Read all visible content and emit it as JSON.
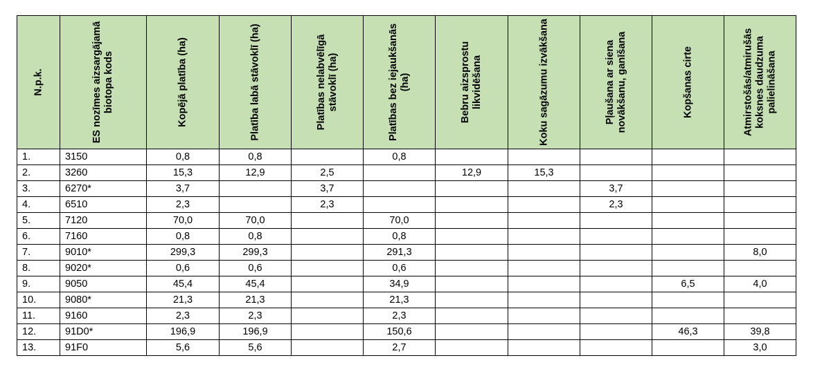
{
  "table": {
    "headers": [
      "N.p.k.",
      "ES nozīmes aizsargājamā biotopa kods",
      "Kopējā platība (ha)",
      "Platība labā stāvoklī (ha)",
      "Platības nelabvēlīgā stāvoklī (ha)",
      "Platības bez iejaukšanās (ha)",
      "Bebru aizsprostu likvidēšana",
      "Koku sagāzumu izvākšana",
      "Pļaušana ar siena novākšanu, ganīšana",
      "Kopšanas cirte",
      "Atmirstošās/atmirušās koksnes daudzuma palielināšana"
    ],
    "rows": [
      [
        "1.",
        "3150",
        "0,8",
        "0,8",
        "",
        "0,8",
        "",
        "",
        "",
        "",
        ""
      ],
      [
        "2.",
        "3260",
        "15,3",
        "12,9",
        "2,5",
        "",
        "12,9",
        "15,3",
        "",
        "",
        ""
      ],
      [
        "3.",
        "6270*",
        "3,7",
        "",
        "3,7",
        "",
        "",
        "",
        "3,7",
        "",
        ""
      ],
      [
        "4.",
        "6510",
        "2,3",
        "",
        "2,3",
        "",
        "",
        "",
        "2,3",
        "",
        ""
      ],
      [
        "5.",
        "7120",
        "70,0",
        "70,0",
        "",
        "70,0",
        "",
        "",
        "",
        "",
        ""
      ],
      [
        "6.",
        "7160",
        "0,8",
        "0,8",
        "",
        "0,8",
        "",
        "",
        "",
        "",
        ""
      ],
      [
        "7.",
        "9010*",
        "299,3",
        "299,3",
        "",
        "291,3",
        "",
        "",
        "",
        "",
        "8,0"
      ],
      [
        "8.",
        "9020*",
        "0,6",
        "0,6",
        "",
        "0,6",
        "",
        "",
        "",
        "",
        ""
      ],
      [
        "9.",
        "9050",
        "45,4",
        "45,4",
        "",
        "34,9",
        "",
        "",
        "",
        "6,5",
        "4,0"
      ],
      [
        "10.",
        "9080*",
        "21,3",
        "21,3",
        "",
        "21,3",
        "",
        "",
        "",
        "",
        ""
      ],
      [
        "11.",
        "9160",
        "2,3",
        "2,3",
        "",
        "2,3",
        "",
        "",
        "",
        "",
        ""
      ],
      [
        "12.",
        "91D0*",
        "196,9",
        "196,9",
        "",
        "150,6",
        "",
        "",
        "",
        "46,3",
        "39,8"
      ],
      [
        "13.",
        "91F0",
        "5,6",
        "5,6",
        "",
        "2,7",
        "",
        "",
        "",
        "",
        "3,0"
      ]
    ]
  }
}
